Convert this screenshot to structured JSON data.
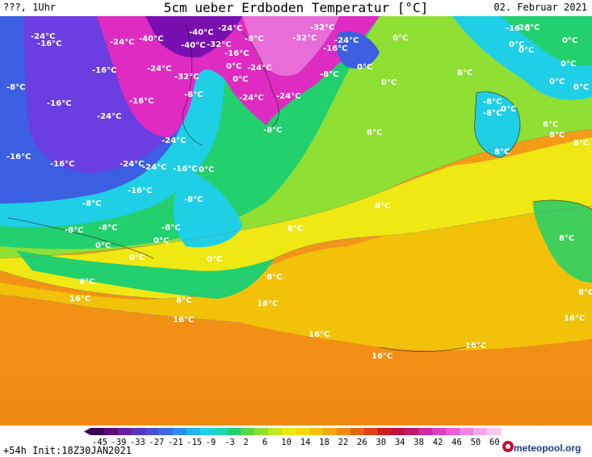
{
  "header": {
    "left": "???, 1Uhr",
    "title": "5cm ueber Erdboden Temperatur [°C]",
    "date": "02. Februar 2021"
  },
  "footer": {
    "init": "+54h Init:18Z30JAN2021",
    "brand": "meteopool.org",
    "scale_values": [
      "-45",
      "-39",
      "-33",
      "-27",
      "-21",
      "-15",
      "-9",
      "-3",
      "2",
      "6",
      "10",
      "14",
      "18",
      "22",
      "26",
      "30",
      "34",
      "38",
      "42",
      "46",
      "50",
      "60"
    ]
  },
  "colors": {
    "deep_cold": "#6a0aa0",
    "cold_magenta": "#e020c0",
    "blue": "#3a5be0",
    "cyan": "#20d0e8",
    "green": "#20d070",
    "lime": "#90e030",
    "yellow": "#f0ea10",
    "amber": "#f2c000",
    "orange": "#f39c12"
  },
  "labels": [
    {
      "t": "-24°C"
    },
    {
      "t": "-16°C"
    },
    {
      "t": "-24°C"
    },
    {
      "t": "-40°C"
    },
    {
      "t": "-40°C"
    },
    {
      "t": "-24°C"
    },
    {
      "t": "-40°C"
    },
    {
      "t": "-32°C"
    },
    {
      "t": "-8°C"
    },
    {
      "t": "-32°C"
    },
    {
      "t": "-24°C"
    },
    {
      "t": "-16°C"
    },
    {
      "t": "-32°C"
    },
    {
      "t": "0°C"
    },
    {
      "t": "-16°C"
    },
    {
      "t": "0°C"
    },
    {
      "t": "-16°C"
    },
    {
      "t": "0°C"
    },
    {
      "t": "-16°C"
    },
    {
      "t": "-24°C"
    },
    {
      "t": "-32°C"
    },
    {
      "t": "0°C"
    },
    {
      "t": "-24°C"
    },
    {
      "t": "-8°C"
    },
    {
      "t": "-8°C"
    },
    {
      "t": "-8°C"
    },
    {
      "t": "0°C"
    },
    {
      "t": "0°C"
    },
    {
      "t": "-8°C"
    },
    {
      "t": "-16°C"
    },
    {
      "t": "-24°C"
    },
    {
      "t": "-16°C"
    },
    {
      "t": "-24°C"
    },
    {
      "t": "-24°C"
    },
    {
      "t": "-8°C"
    },
    {
      "t": "-24°C"
    },
    {
      "t": "-16°C"
    },
    {
      "t": "-16°C"
    },
    {
      "t": "-24°C"
    },
    {
      "t": "-24°C"
    },
    {
      "t": "-16°C"
    },
    {
      "t": "0°C"
    },
    {
      "t": "-16°C"
    },
    {
      "t": "-8°C"
    },
    {
      "t": "-8°C"
    },
    {
      "t": "-8°C"
    },
    {
      "t": "-8°C"
    },
    {
      "t": "0°C"
    },
    {
      "t": "0°C"
    },
    {
      "t": "0°C"
    },
    {
      "t": "0°C"
    },
    {
      "t": "8°C"
    },
    {
      "t": "8°C"
    },
    {
      "t": "16°C"
    },
    {
      "t": "8°C"
    },
    {
      "t": "16°C"
    },
    {
      "t": "16°C"
    },
    {
      "t": "16°C"
    },
    {
      "t": "16°C"
    },
    {
      "t": "16°C"
    },
    {
      "t": "8°C"
    },
    {
      "t": "8°C"
    },
    {
      "t": "8°C"
    },
    {
      "t": "8°C"
    },
    {
      "t": "8°C"
    },
    {
      "t": "-8°C"
    },
    {
      "t": "0°C"
    },
    {
      "t": "8°C"
    },
    {
      "t": "8°C"
    },
    {
      "t": "8°C"
    },
    {
      "t": "8°C"
    },
    {
      "t": "16°C"
    },
    {
      "t": "8°C"
    },
    {
      "t": "-16°C"
    },
    {
      "t": "0°C"
    },
    {
      "t": "0°C"
    },
    {
      "t": "0°C"
    },
    {
      "t": "0°C"
    },
    {
      "t": "-8°C"
    },
    {
      "t": "0°C"
    }
  ]
}
